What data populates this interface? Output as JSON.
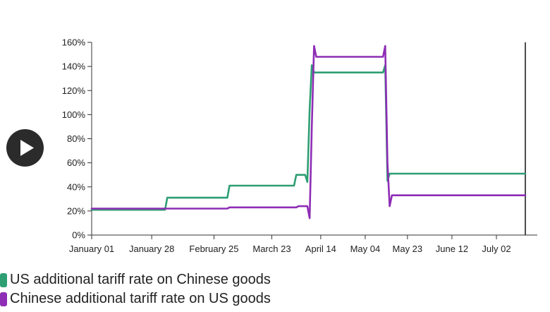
{
  "chart_data": {
    "type": "line",
    "title": "",
    "xlabel": "",
    "ylabel": "",
    "x_tick_labels": [
      "January 01",
      "January 28",
      "February 25",
      "March 23",
      "April 14",
      "May 04",
      "May 23",
      "June 12",
      "July 02"
    ],
    "x_tick_dates": [
      "2025-01-01",
      "2025-01-28",
      "2025-02-25",
      "2025-03-23",
      "2025-04-14",
      "2025-05-04",
      "2025-05-23",
      "2025-06-12",
      "2025-07-02"
    ],
    "xlim": [
      "2025-01-01",
      "2025-07-15"
    ],
    "y_tick_labels": [
      "0%",
      "20%",
      "40%",
      "60%",
      "80%",
      "100%",
      "120%",
      "140%",
      "160%"
    ],
    "ylim": [
      0,
      160
    ],
    "grid": false,
    "legend_position": "bottom-left",
    "series": [
      {
        "name": "US additional tariff rate on Chinese goods",
        "color": "#2e9e73",
        "points": [
          [
            "2025-01-01",
            21
          ],
          [
            "2025-02-03",
            21
          ],
          [
            "2025-02-04",
            31
          ],
          [
            "2025-03-03",
            31
          ],
          [
            "2025-03-04",
            41
          ],
          [
            "2025-04-02",
            41
          ],
          [
            "2025-04-03",
            50
          ],
          [
            "2025-04-07",
            50
          ],
          [
            "2025-04-08",
            44
          ],
          [
            "2025-04-09",
            104
          ],
          [
            "2025-04-10",
            141
          ],
          [
            "2025-04-11",
            135
          ],
          [
            "2025-05-12",
            135
          ],
          [
            "2025-05-13",
            141
          ],
          [
            "2025-05-14",
            45
          ],
          [
            "2025-05-15",
            51
          ],
          [
            "2025-07-15",
            51
          ]
        ]
      },
      {
        "name": "Chinese additional tariff rate on US goods",
        "color": "#8e2db5",
        "points": [
          [
            "2025-01-01",
            22
          ],
          [
            "2025-03-03",
            22
          ],
          [
            "2025-03-04",
            23
          ],
          [
            "2025-04-03",
            23
          ],
          [
            "2025-04-04",
            24
          ],
          [
            "2025-04-08",
            24
          ],
          [
            "2025-04-09",
            14
          ],
          [
            "2025-04-10",
            90
          ],
          [
            "2025-04-11",
            157
          ],
          [
            "2025-04-12",
            148
          ],
          [
            "2025-05-12",
            148
          ],
          [
            "2025-05-13",
            157
          ],
          [
            "2025-05-14",
            60
          ],
          [
            "2025-05-15",
            24
          ],
          [
            "2025-05-16",
            33
          ],
          [
            "2025-07-15",
            33
          ]
        ]
      }
    ]
  },
  "legend": {
    "items": [
      {
        "label": "US additional tariff rate on Chinese goods",
        "color": "#2e9e73"
      },
      {
        "label": "Chinese additional tariff rate on US goods",
        "color": "#8e2db5"
      }
    ]
  },
  "controls": {
    "play_icon": "play-icon"
  }
}
